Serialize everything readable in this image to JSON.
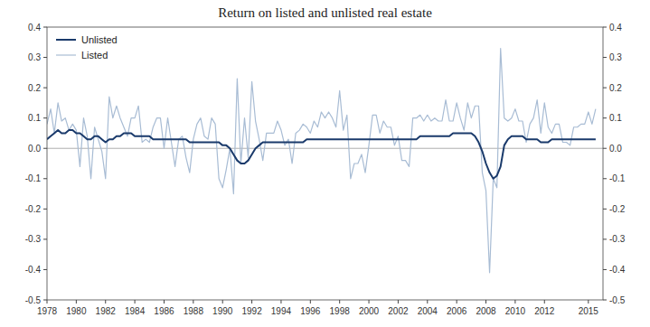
{
  "chart_data": {
    "type": "line",
    "title": "Return on listed and unlisted real estate",
    "x": [
      1978.0,
      1978.25,
      1978.5,
      1978.75,
      1979.0,
      1979.25,
      1979.5,
      1979.75,
      1980.0,
      1980.25,
      1980.5,
      1980.75,
      1981.0,
      1981.25,
      1981.5,
      1981.75,
      1982.0,
      1982.25,
      1982.5,
      1982.75,
      1983.0,
      1983.25,
      1983.5,
      1983.75,
      1984.0,
      1984.25,
      1984.5,
      1984.75,
      1985.0,
      1985.25,
      1985.5,
      1985.75,
      1986.0,
      1986.25,
      1986.5,
      1986.75,
      1987.0,
      1987.25,
      1987.5,
      1987.75,
      1988.0,
      1988.25,
      1988.5,
      1988.75,
      1989.0,
      1989.25,
      1989.5,
      1989.75,
      1990.0,
      1990.25,
      1990.5,
      1990.75,
      1991.0,
      1991.25,
      1991.5,
      1991.75,
      1992.0,
      1992.25,
      1992.5,
      1992.75,
      1993.0,
      1993.25,
      1993.5,
      1993.75,
      1994.0,
      1994.25,
      1994.5,
      1994.75,
      1995.0,
      1995.25,
      1995.5,
      1995.75,
      1996.0,
      1996.25,
      1996.5,
      1996.75,
      1997.0,
      1997.25,
      1997.5,
      1997.75,
      1998.0,
      1998.25,
      1998.5,
      1998.75,
      1999.0,
      1999.25,
      1999.5,
      1999.75,
      2000.0,
      2000.25,
      2000.5,
      2000.75,
      2001.0,
      2001.25,
      2001.5,
      2001.75,
      2002.0,
      2002.25,
      2002.5,
      2002.75,
      2003.0,
      2003.25,
      2003.5,
      2003.75,
      2004.0,
      2004.25,
      2004.5,
      2004.75,
      2005.0,
      2005.25,
      2005.5,
      2005.75,
      2006.0,
      2006.25,
      2006.5,
      2006.75,
      2007.0,
      2007.25,
      2007.5,
      2007.75,
      2008.0,
      2008.25,
      2008.5,
      2008.75,
      2009.0,
      2009.25,
      2009.5,
      2009.75,
      2010.0,
      2010.25,
      2010.5,
      2010.75,
      2011.0,
      2011.25,
      2011.5,
      2011.75,
      2012.0,
      2012.25,
      2012.5,
      2012.75,
      2013.0,
      2013.25,
      2013.5,
      2013.75,
      2014.0,
      2014.25,
      2014.5,
      2014.75,
      2015.0,
      2015.25,
      2015.5
    ],
    "series": [
      {
        "name": "Listed",
        "color": "#a8bcd4",
        "values": [
          0.08,
          0.13,
          0.05,
          0.15,
          0.09,
          0.1,
          0.06,
          0.08,
          0.06,
          -0.06,
          0.1,
          0.04,
          -0.1,
          0.07,
          0.03,
          -0.01,
          -0.1,
          0.17,
          0.1,
          0.14,
          0.1,
          0.07,
          0.04,
          0.1,
          0.1,
          0.14,
          0.02,
          0.03,
          0.02,
          0.07,
          0.1,
          0.1,
          0.0,
          0.1,
          0.02,
          -0.06,
          0.03,
          0.04,
          -0.03,
          -0.08,
          0.03,
          0.08,
          0.1,
          0.04,
          0.03,
          0.1,
          0.08,
          -0.1,
          -0.13,
          -0.07,
          0.0,
          -0.15,
          0.23,
          -0.05,
          0.1,
          -0.03,
          0.22,
          0.09,
          0.03,
          -0.04,
          0.05,
          0.05,
          0.05,
          0.09,
          0.06,
          0.01,
          0.03,
          -0.05,
          0.05,
          0.06,
          0.08,
          0.07,
          0.05,
          0.09,
          0.07,
          0.12,
          0.1,
          0.12,
          0.1,
          0.07,
          0.19,
          0.06,
          0.11,
          -0.1,
          -0.05,
          -0.05,
          -0.02,
          -0.08,
          0.01,
          0.11,
          0.11,
          0.05,
          0.09,
          0.07,
          0.07,
          0.01,
          0.04,
          -0.04,
          -0.04,
          -0.06,
          0.1,
          0.1,
          0.11,
          0.09,
          0.11,
          0.09,
          0.1,
          0.09,
          0.09,
          0.16,
          0.09,
          0.09,
          0.15,
          0.1,
          0.06,
          0.15,
          0.1,
          0.14,
          0.14,
          -0.08,
          -0.14,
          -0.41,
          -0.1,
          -0.13,
          0.33,
          0.1,
          0.09,
          0.1,
          0.13,
          0.09,
          0.09,
          0.02,
          0.08,
          0.1,
          0.16,
          0.05,
          0.15,
          0.07,
          0.05,
          0.08,
          0.08,
          0.02,
          0.02,
          0.01,
          0.07,
          0.07,
          0.08,
          0.08,
          0.12,
          0.08,
          0.13
        ]
      },
      {
        "name": "Unlisted",
        "color": "#1a3a6b",
        "values": [
          0.03,
          0.04,
          0.05,
          0.06,
          0.05,
          0.05,
          0.06,
          0.06,
          0.05,
          0.05,
          0.04,
          0.03,
          0.03,
          0.04,
          0.04,
          0.03,
          0.02,
          0.03,
          0.03,
          0.04,
          0.04,
          0.05,
          0.05,
          0.05,
          0.04,
          0.04,
          0.04,
          0.04,
          0.04,
          0.03,
          0.03,
          0.03,
          0.03,
          0.03,
          0.03,
          0.03,
          0.03,
          0.03,
          0.03,
          0.02,
          0.02,
          0.02,
          0.02,
          0.02,
          0.02,
          0.02,
          0.02,
          0.02,
          0.01,
          0.01,
          0.0,
          -0.02,
          -0.04,
          -0.05,
          -0.05,
          -0.04,
          -0.02,
          0.0,
          0.01,
          0.02,
          0.02,
          0.02,
          0.02,
          0.02,
          0.02,
          0.02,
          0.02,
          0.02,
          0.02,
          0.02,
          0.02,
          0.03,
          0.03,
          0.03,
          0.03,
          0.03,
          0.03,
          0.03,
          0.03,
          0.03,
          0.03,
          0.03,
          0.03,
          0.03,
          0.03,
          0.03,
          0.03,
          0.03,
          0.03,
          0.03,
          0.03,
          0.03,
          0.03,
          0.03,
          0.03,
          0.03,
          0.03,
          0.03,
          0.03,
          0.03,
          0.03,
          0.03,
          0.04,
          0.04,
          0.04,
          0.04,
          0.04,
          0.04,
          0.04,
          0.04,
          0.04,
          0.05,
          0.05,
          0.05,
          0.05,
          0.05,
          0.05,
          0.04,
          0.02,
          -0.01,
          -0.05,
          -0.08,
          -0.1,
          -0.09,
          -0.06,
          0.01,
          0.03,
          0.04,
          0.04,
          0.04,
          0.04,
          0.03,
          0.03,
          0.03,
          0.03,
          0.02,
          0.02,
          0.02,
          0.03,
          0.03,
          0.03,
          0.03,
          0.03,
          0.03,
          0.03,
          0.03,
          0.03,
          0.03,
          0.03,
          0.03,
          0.03
        ]
      }
    ],
    "xlim": [
      1978,
      2016.0
    ],
    "xticks": [
      1978,
      1980,
      1982,
      1984,
      1986,
      1988,
      1990,
      1992,
      1994,
      1996,
      1998,
      2000,
      2002,
      2004,
      2006,
      2008,
      2010,
      2012,
      2015
    ],
    "ylim": [
      -0.5,
      0.4
    ],
    "yticks": [
      -0.5,
      -0.4,
      -0.3,
      -0.2,
      -0.1,
      {
        "value": 0.0,
        "label": "0.0"
      },
      0.1,
      0.2,
      0.3,
      0.4
    ],
    "y2lim": [
      -0.5,
      0.4
    ],
    "y2ticks": [
      -0.5,
      -0.4,
      -0.3,
      -0.2,
      -0.1,
      {
        "value": 0.0,
        "label": "0.0"
      },
      0.1,
      0.2,
      0.3,
      0.4
    ],
    "legend": "upper left",
    "grid": false
  }
}
